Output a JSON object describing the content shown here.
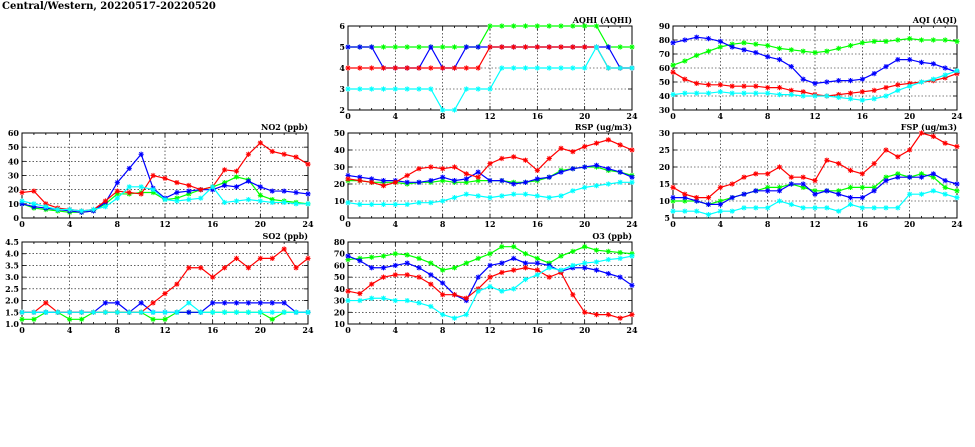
{
  "page": {
    "title": "Central/Western, 20220517-20220520"
  },
  "colors": {
    "series_a": "#00ff00",
    "series_b": "#0000ff",
    "series_c": "#ff0000",
    "series_d": "#00ffff"
  },
  "chart_data": [
    {
      "id": "no2",
      "type": "line",
      "title": "NO2 (ppb)",
      "x": [
        0,
        1,
        2,
        3,
        4,
        5,
        6,
        7,
        8,
        9,
        10,
        11,
        12,
        13,
        14,
        15,
        16,
        17,
        18,
        19,
        20,
        21,
        22,
        23,
        24
      ],
      "xlim": [
        0,
        24
      ],
      "xticks": [
        0,
        4,
        8,
        12,
        16,
        20,
        24
      ],
      "ylim": [
        0,
        60
      ],
      "yticks": [
        0,
        10,
        20,
        30,
        40,
        50,
        60
      ],
      "yticklabels": [
        "0",
        "10",
        "20",
        "30",
        "40",
        "50",
        "60"
      ],
      "grid": true,
      "series": [
        {
          "color": "#00ff00",
          "values": [
            10,
            7,
            6,
            5,
            4,
            4,
            5,
            10,
            17,
            17,
            18,
            18,
            13,
            14,
            17,
            20,
            22,
            25,
            29,
            27,
            16,
            13,
            12,
            11,
            10
          ]
        },
        {
          "color": "#0000ff",
          "values": [
            10,
            8,
            7,
            6,
            5,
            4,
            5,
            11,
            25,
            35,
            45,
            21,
            14,
            18,
            19,
            20,
            20,
            23,
            22,
            26,
            22,
            19,
            19,
            18,
            17
          ]
        },
        {
          "color": "#ff0000",
          "values": [
            18,
            19,
            10,
            7,
            6,
            5,
            6,
            12,
            19,
            18,
            17,
            30,
            28,
            25,
            23,
            20,
            22,
            34,
            33,
            45,
            53,
            47,
            45,
            43,
            38
          ]
        },
        {
          "color": "#00ffff",
          "values": [
            12,
            10,
            8,
            6,
            6,
            5,
            6,
            8,
            14,
            22,
            22,
            20,
            13,
            12,
            13,
            14,
            22,
            11,
            12,
            13,
            12,
            11,
            11,
            10,
            10
          ]
        }
      ]
    },
    {
      "id": "so2",
      "type": "line",
      "title": "SO2 (ppb)",
      "x": [
        0,
        1,
        2,
        3,
        4,
        5,
        6,
        7,
        8,
        9,
        10,
        11,
        12,
        13,
        14,
        15,
        16,
        17,
        18,
        19,
        20,
        21,
        22,
        23,
        24
      ],
      "xlim": [
        0,
        24
      ],
      "xticks": [
        0,
        4,
        8,
        12,
        16,
        20,
        24
      ],
      "ylim": [
        1.0,
        4.5
      ],
      "yticks": [
        1.0,
        1.5,
        2.0,
        2.5,
        3.0,
        3.5,
        4.0,
        4.5
      ],
      "yticklabels": [
        "1.0",
        "1.5",
        "2.0",
        "2.5",
        "3.0",
        "3.5",
        "4.0",
        "4.5"
      ],
      "grid": true,
      "series": [
        {
          "color": "#00ff00",
          "values": [
            1.2,
            1.2,
            1.5,
            1.5,
            1.2,
            1.2,
            1.5,
            1.5,
            1.5,
            1.5,
            1.5,
            1.2,
            1.2,
            1.5,
            1.5,
            1.5,
            1.5,
            1.5,
            1.5,
            1.5,
            1.5,
            1.2,
            1.5,
            1.5,
            1.5
          ]
        },
        {
          "color": "#0000ff",
          "values": [
            1.5,
            1.5,
            1.5,
            1.5,
            1.5,
            1.5,
            1.5,
            1.9,
            1.9,
            1.5,
            1.9,
            1.5,
            1.5,
            1.5,
            1.5,
            1.5,
            1.9,
            1.9,
            1.9,
            1.9,
            1.9,
            1.9,
            1.9,
            1.5,
            1.5
          ]
        },
        {
          "color": "#ff0000",
          "values": [
            1.5,
            1.5,
            1.9,
            1.5,
            1.5,
            1.5,
            1.5,
            1.5,
            1.5,
            1.5,
            1.5,
            1.9,
            2.3,
            2.7,
            3.4,
            3.4,
            3.0,
            3.4,
            3.8,
            3.4,
            3.8,
            3.8,
            4.2,
            3.4,
            3.8
          ]
        },
        {
          "color": "#00ffff",
          "values": [
            1.5,
            1.5,
            1.5,
            1.5,
            1.5,
            1.5,
            1.5,
            1.5,
            1.5,
            1.5,
            1.5,
            1.5,
            1.5,
            1.5,
            1.9,
            1.5,
            1.5,
            1.5,
            1.5,
            1.5,
            1.5,
            1.5,
            1.5,
            1.5,
            1.5
          ]
        }
      ]
    },
    {
      "id": "aqhi",
      "type": "line",
      "title": "AQHI (AQHI)",
      "x": [
        0,
        1,
        2,
        3,
        4,
        5,
        6,
        7,
        8,
        9,
        10,
        11,
        12,
        13,
        14,
        15,
        16,
        17,
        18,
        19,
        20,
        21,
        22,
        23,
        24
      ],
      "xlim": [
        0,
        24
      ],
      "xticks": [
        0,
        4,
        8,
        12,
        16,
        20,
        24
      ],
      "ylim": [
        2,
        6
      ],
      "yticks": [
        2,
        3,
        4,
        5,
        6
      ],
      "yticklabels": [
        "2",
        "3",
        "4",
        "5",
        "6"
      ],
      "grid": true,
      "series": [
        {
          "color": "#00ff00",
          "values": [
            5,
            5,
            5,
            5,
            5,
            5,
            5,
            5,
            5,
            5,
            5,
            5,
            6,
            6,
            6,
            6,
            6,
            6,
            6,
            6,
            6,
            6,
            5,
            5,
            5
          ]
        },
        {
          "color": "#0000ff",
          "values": [
            5,
            5,
            5,
            4,
            4,
            4,
            4,
            5,
            4,
            4,
            5,
            5,
            5,
            5,
            5,
            5,
            5,
            5,
            5,
            5,
            5,
            5,
            5,
            4,
            4
          ]
        },
        {
          "color": "#ff0000",
          "values": [
            4,
            4,
            4,
            4,
            4,
            4,
            4,
            4,
            4,
            4,
            4,
            4,
            5,
            5,
            5,
            5,
            5,
            5,
            5,
            5,
            5,
            5,
            4,
            4,
            4
          ]
        },
        {
          "color": "#00ffff",
          "values": [
            3,
            3,
            3,
            3,
            3,
            3,
            3,
            3,
            2,
            2,
            3,
            3,
            3,
            4,
            4,
            4,
            4,
            4,
            4,
            4,
            4,
            5,
            4,
            4,
            4
          ]
        }
      ]
    },
    {
      "id": "rsp",
      "type": "line",
      "title": "RSP (ug/m3)",
      "x": [
        0,
        1,
        2,
        3,
        4,
        5,
        6,
        7,
        8,
        9,
        10,
        11,
        12,
        13,
        14,
        15,
        16,
        17,
        18,
        19,
        20,
        21,
        22,
        23,
        24
      ],
      "xlim": [
        0,
        24
      ],
      "xticks": [
        0,
        4,
        8,
        12,
        16,
        20,
        24
      ],
      "ylim": [
        0,
        50
      ],
      "yticks": [
        0,
        10,
        20,
        30,
        40,
        50
      ],
      "yticklabels": [
        "0",
        "10",
        "20",
        "30",
        "40",
        "50"
      ],
      "grid": true,
      "series": [
        {
          "color": "#00ff00",
          "values": [
            22,
            22,
            21,
            21,
            21,
            20,
            21,
            21,
            22,
            21,
            21,
            22,
            22,
            22,
            21,
            21,
            22,
            24,
            28,
            29,
            30,
            30,
            28,
            27,
            25
          ]
        },
        {
          "color": "#0000ff",
          "values": [
            25,
            24,
            23,
            22,
            22,
            21,
            21,
            22,
            24,
            22,
            23,
            27,
            22,
            22,
            20,
            21,
            23,
            24,
            27,
            29,
            30,
            31,
            29,
            27,
            24
          ]
        },
        {
          "color": "#ff0000",
          "values": [
            23,
            22,
            21,
            19,
            21,
            25,
            29,
            30,
            29,
            30,
            26,
            24,
            32,
            35,
            36,
            34,
            28,
            35,
            41,
            39,
            42,
            44,
            46,
            43,
            40
          ]
        },
        {
          "color": "#00ffff",
          "values": [
            9,
            8,
            8,
            8,
            8,
            8,
            9,
            9,
            10,
            12,
            14,
            13,
            12,
            13,
            14,
            14,
            13,
            12,
            13,
            16,
            18,
            19,
            20,
            21,
            21
          ]
        }
      ]
    },
    {
      "id": "o3",
      "type": "line",
      "title": "O3 (ppb)",
      "x": [
        0,
        1,
        2,
        3,
        4,
        5,
        6,
        7,
        8,
        9,
        10,
        11,
        12,
        13,
        14,
        15,
        16,
        17,
        18,
        19,
        20,
        21,
        22,
        23,
        24
      ],
      "xlim": [
        0,
        24
      ],
      "xticks": [
        0,
        4,
        8,
        12,
        16,
        20,
        24
      ],
      "ylim": [
        10,
        80
      ],
      "yticks": [
        10,
        20,
        30,
        40,
        50,
        60,
        70,
        80
      ],
      "yticklabels": [
        "10",
        "20",
        "30",
        "40",
        "50",
        "60",
        "70",
        "80"
      ],
      "grid": true,
      "series": [
        {
          "color": "#00ff00",
          "values": [
            65,
            66,
            67,
            68,
            70,
            69,
            66,
            62,
            56,
            58,
            62,
            66,
            70,
            76,
            76,
            70,
            66,
            62,
            68,
            72,
            76,
            73,
            72,
            71,
            70
          ]
        },
        {
          "color": "#0000ff",
          "values": [
            68,
            64,
            58,
            58,
            60,
            62,
            58,
            52,
            45,
            35,
            30,
            50,
            60,
            62,
            66,
            62,
            62,
            60,
            55,
            58,
            58,
            56,
            53,
            50,
            43
          ]
        },
        {
          "color": "#ff0000",
          "values": [
            38,
            36,
            44,
            50,
            52,
            52,
            50,
            44,
            35,
            35,
            32,
            40,
            50,
            54,
            56,
            58,
            56,
            50,
            54,
            35,
            20,
            18,
            18,
            15,
            18
          ]
        },
        {
          "color": "#00ffff",
          "values": [
            30,
            30,
            32,
            32,
            30,
            30,
            28,
            25,
            18,
            15,
            18,
            38,
            42,
            38,
            40,
            48,
            52,
            58,
            56,
            60,
            62,
            63,
            65,
            66,
            68
          ]
        }
      ]
    },
    {
      "id": "aqi",
      "type": "line",
      "title": "AQI (AQI)",
      "x": [
        0,
        1,
        2,
        3,
        4,
        5,
        6,
        7,
        8,
        9,
        10,
        11,
        12,
        13,
        14,
        15,
        16,
        17,
        18,
        19,
        20,
        21,
        22,
        23,
        24
      ],
      "xlim": [
        0,
        24
      ],
      "xticks": [
        0,
        4,
        8,
        12,
        16,
        20,
        24
      ],
      "ylim": [
        30,
        90
      ],
      "yticks": [
        30,
        40,
        50,
        60,
        70,
        80,
        90
      ],
      "yticklabels": [
        "30",
        "40",
        "50",
        "60",
        "70",
        "80",
        "90"
      ],
      "grid": true,
      "series": [
        {
          "color": "#00ff00",
          "values": [
            62,
            65,
            69,
            72,
            75,
            77,
            78,
            77,
            76,
            74,
            73,
            72,
            71,
            72,
            74,
            76,
            78,
            79,
            79,
            80,
            81,
            80,
            80,
            80,
            79
          ]
        },
        {
          "color": "#0000ff",
          "values": [
            78,
            80,
            82,
            81,
            79,
            75,
            73,
            71,
            68,
            66,
            61,
            52,
            49,
            50,
            51,
            51,
            52,
            56,
            61,
            66,
            66,
            64,
            63,
            60,
            57
          ]
        },
        {
          "color": "#ff0000",
          "values": [
            57,
            52,
            49,
            48,
            48,
            47,
            47,
            47,
            46,
            46,
            44,
            43,
            41,
            40,
            41,
            42,
            43,
            44,
            46,
            48,
            49,
            50,
            51,
            53,
            56
          ]
        },
        {
          "color": "#00ffff",
          "values": [
            41,
            42,
            42,
            42,
            43,
            42,
            42,
            42,
            42,
            41,
            41,
            40,
            40,
            40,
            39,
            38,
            37,
            38,
            40,
            44,
            47,
            50,
            52,
            55,
            58
          ]
        }
      ]
    },
    {
      "id": "fsp",
      "type": "line",
      "title": "FSP (ug/m3)",
      "x": [
        0,
        1,
        2,
        3,
        4,
        5,
        6,
        7,
        8,
        9,
        10,
        11,
        12,
        13,
        14,
        15,
        16,
        17,
        18,
        19,
        20,
        21,
        22,
        23,
        24
      ],
      "xlim": [
        0,
        24
      ],
      "xticks": [
        0,
        4,
        8,
        12,
        16,
        20,
        24
      ],
      "ylim": [
        5,
        30
      ],
      "yticks": [
        5,
        10,
        15,
        20,
        25,
        30
      ],
      "yticklabels": [
        "5",
        "10",
        "15",
        "20",
        "25",
        "30"
      ],
      "grid": true,
      "series": [
        {
          "color": "#00ff00",
          "values": [
            10,
            10,
            10,
            9,
            10,
            11,
            12,
            13,
            14,
            14,
            15,
            14,
            13,
            13,
            13,
            14,
            14,
            14,
            17,
            18,
            17,
            18,
            17,
            14,
            13
          ]
        },
        {
          "color": "#0000ff",
          "values": [
            11,
            11,
            10,
            9,
            9,
            11,
            12,
            13,
            13,
            13,
            15,
            15,
            12,
            13,
            12,
            11,
            11,
            13,
            16,
            17,
            17,
            17,
            18,
            16,
            15
          ]
        },
        {
          "color": "#ff0000",
          "values": [
            14,
            12,
            11,
            11,
            14,
            15,
            17,
            18,
            18,
            20,
            17,
            17,
            16,
            22,
            21,
            19,
            18,
            21,
            25,
            23,
            25,
            30,
            29,
            27,
            26
          ]
        },
        {
          "color": "#00ffff",
          "values": [
            7,
            7,
            7,
            6,
            7,
            7,
            8,
            8,
            8,
            10,
            9,
            8,
            8,
            8,
            7,
            9,
            8,
            8,
            8,
            8,
            12,
            12,
            13,
            12,
            11
          ]
        }
      ]
    }
  ]
}
